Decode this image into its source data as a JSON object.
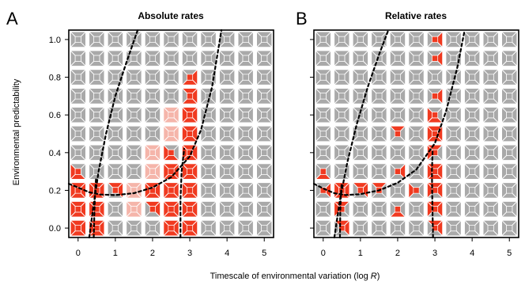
{
  "chart_data": [
    {
      "type": "heatmap",
      "panel": "A",
      "title": "Absolute rates",
      "xlabel": "Timescale of environmental variation (log R)",
      "ylabel": "Environmental predictability",
      "xlim": [
        -0.25,
        5.25
      ],
      "ylim": [
        -0.05,
        1.05
      ],
      "xticks": [
        0,
        1,
        2,
        3,
        4,
        5
      ],
      "yticks": [
        0.0,
        0.2,
        0.4,
        0.6,
        0.8,
        1.0
      ],
      "grid_x_step": 0.5,
      "grid_y_step": 0.1,
      "colors": {
        "cell": "#a9a9a9",
        "highlight": "#f03a20",
        "shade": "#f5b5aa",
        "curve": "#000000",
        "frame": "#000000"
      },
      "highlight_cells": [
        {
          "x": 0.0,
          "y": 0.0,
          "q": [
            "tl",
            "tr",
            "bl",
            "br"
          ]
        },
        {
          "x": 0.5,
          "y": 0.0,
          "q": [
            "tl",
            "tr",
            "bl",
            "br"
          ]
        },
        {
          "x": 0.0,
          "y": 0.1,
          "q": [
            "tl",
            "tr",
            "bl",
            "br"
          ]
        },
        {
          "x": 0.5,
          "y": 0.1,
          "q": [
            "tl",
            "tr",
            "bl",
            "br"
          ]
        },
        {
          "x": 0.0,
          "y": 0.2,
          "q": [
            "tl",
            "tr",
            "bl",
            "br"
          ]
        },
        {
          "x": 0.5,
          "y": 0.2,
          "q": [
            "tl",
            "tr",
            "bl",
            "br"
          ]
        },
        {
          "x": 0.0,
          "y": 0.3,
          "q": [
            "bl",
            "br"
          ]
        },
        {
          "x": 1.0,
          "y": 0.2,
          "q": [
            "tl",
            "tr"
          ]
        },
        {
          "x": 2.5,
          "y": 0.0,
          "q": [
            "tl",
            "tr",
            "bl",
            "br"
          ]
        },
        {
          "x": 3.0,
          "y": 0.0,
          "q": [
            "tl",
            "tr",
            "bl",
            "br"
          ]
        },
        {
          "x": 2.0,
          "y": 0.1,
          "q": [
            "tl",
            "tr"
          ]
        },
        {
          "x": 2.5,
          "y": 0.1,
          "q": [
            "tl",
            "tr",
            "bl",
            "br"
          ]
        },
        {
          "x": 3.0,
          "y": 0.1,
          "q": [
            "tl",
            "tr",
            "bl",
            "br"
          ]
        },
        {
          "x": 2.0,
          "y": 0.2,
          "q": [
            "tl",
            "tr",
            "bl",
            "br"
          ]
        },
        {
          "x": 2.5,
          "y": 0.2,
          "q": [
            "tl",
            "tr",
            "bl",
            "br"
          ]
        },
        {
          "x": 3.0,
          "y": 0.2,
          "q": [
            "tl",
            "tr",
            "bl",
            "br"
          ]
        },
        {
          "x": 2.5,
          "y": 0.3,
          "q": [
            "tl",
            "tr",
            "bl",
            "br"
          ]
        },
        {
          "x": 3.0,
          "y": 0.3,
          "q": [
            "tl",
            "tr",
            "bl",
            "br"
          ]
        },
        {
          "x": 2.5,
          "y": 0.4,
          "q": [
            "bl",
            "br"
          ]
        },
        {
          "x": 3.0,
          "y": 0.4,
          "q": [
            "tl",
            "tr",
            "bl",
            "br"
          ]
        },
        {
          "x": 3.0,
          "y": 0.5,
          "q": [
            "tl",
            "tr",
            "bl",
            "br"
          ]
        },
        {
          "x": 3.0,
          "y": 0.6,
          "q": [
            "tl",
            "tr",
            "bl",
            "br"
          ]
        },
        {
          "x": 3.0,
          "y": 0.7,
          "q": [
            "tl",
            "tr",
            "br"
          ]
        },
        {
          "x": 3.0,
          "y": 0.8,
          "q": [
            "tr",
            "br"
          ]
        }
      ],
      "shaded_cells": [
        {
          "x": 1.5,
          "y": 0.1,
          "q": [
            "tl",
            "tr",
            "bl",
            "br"
          ]
        },
        {
          "x": 1.5,
          "y": 0.2,
          "q": [
            "tl",
            "tr",
            "bl",
            "br"
          ]
        },
        {
          "x": 2.0,
          "y": 0.3,
          "q": [
            "tl",
            "tr",
            "bl",
            "br"
          ]
        },
        {
          "x": 2.0,
          "y": 0.4,
          "q": [
            "tl",
            "tr",
            "bl",
            "br"
          ]
        },
        {
          "x": 2.5,
          "y": 0.5,
          "q": [
            "tl",
            "tr",
            "bl",
            "br"
          ]
        },
        {
          "x": 2.5,
          "y": 0.6,
          "q": [
            "tl",
            "tr",
            "bl",
            "br"
          ]
        }
      ],
      "curves": [
        {
          "name": "",
          "points": [
            [
              -0.25,
              0.235
            ],
            [
              0.0,
              0.215
            ],
            [
              0.3,
              0.19
            ],
            [
              0.6,
              0.178
            ],
            [
              1.0,
              0.175
            ],
            [
              1.5,
              0.185
            ],
            [
              2.0,
              0.215
            ],
            [
              2.5,
              0.27
            ],
            [
              3.0,
              0.38
            ],
            [
              3.3,
              0.52
            ],
            [
              3.6,
              0.75
            ],
            [
              3.85,
              1.05
            ]
          ]
        },
        {
          "name": "",
          "points": [
            [
              0.3,
              -0.05
            ],
            [
              0.4,
              0.1
            ],
            [
              0.55,
              0.3
            ],
            [
              0.75,
              0.5
            ],
            [
              1.0,
              0.7
            ],
            [
              1.3,
              0.88
            ],
            [
              1.6,
              1.05
            ]
          ]
        },
        {
          "name": "",
          "points": [
            [
              0.42,
              -0.05
            ],
            [
              0.44,
              0.1
            ],
            [
              0.46,
              0.2
            ],
            [
              0.48,
              0.26
            ]
          ]
        },
        {
          "name": "",
          "points": [
            [
              2.75,
              -0.05
            ],
            [
              2.75,
              0.15
            ],
            [
              2.78,
              0.3
            ],
            [
              2.85,
              0.42
            ]
          ]
        }
      ]
    },
    {
      "type": "heatmap",
      "panel": "B",
      "title": "Relative rates",
      "xlabel": "",
      "ylabel": "",
      "xlim": [
        -0.25,
        5.25
      ],
      "ylim": [
        -0.05,
        1.05
      ],
      "xticks": [
        0,
        1,
        2,
        3,
        4,
        5
      ],
      "yticks": [
        0.0,
        0.2,
        0.4,
        0.6,
        0.8,
        1.0
      ],
      "grid_x_step": 0.5,
      "grid_y_step": 0.1,
      "colors": {
        "cell": "#a9a9a9",
        "highlight": "#f03a20",
        "shade": "#f5b5aa",
        "curve": "#000000",
        "frame": "#000000"
      },
      "highlight_cells": [
        {
          "x": 0.5,
          "y": 0.0,
          "q": [
            "tl",
            "tr"
          ]
        },
        {
          "x": 0.5,
          "y": 0.1,
          "q": [
            "tl",
            "bl"
          ]
        },
        {
          "x": 0.5,
          "y": 0.2,
          "q": [
            "tl",
            "tr",
            "bl",
            "br"
          ]
        },
        {
          "x": 0.0,
          "y": 0.2,
          "q": [
            "tr"
          ]
        },
        {
          "x": 0.0,
          "y": 0.3,
          "q": [
            "br"
          ]
        },
        {
          "x": 1.0,
          "y": 0.2,
          "q": [
            "tl",
            "tr"
          ]
        },
        {
          "x": 1.5,
          "y": 0.2,
          "q": [
            "tl"
          ]
        },
        {
          "x": 2.0,
          "y": 0.1,
          "q": [
            "br"
          ]
        },
        {
          "x": 2.0,
          "y": 0.3,
          "q": [
            "tr"
          ]
        },
        {
          "x": 2.0,
          "y": 0.5,
          "q": [
            "tl"
          ]
        },
        {
          "x": 2.5,
          "y": 0.2,
          "q": [
            "bl"
          ]
        },
        {
          "x": 3.0,
          "y": 0.0,
          "q": [
            "tl",
            "tr"
          ]
        },
        {
          "x": 3.0,
          "y": 0.1,
          "q": [
            "tl",
            "tr",
            "bl"
          ]
        },
        {
          "x": 3.0,
          "y": 0.2,
          "q": [
            "tl",
            "tr",
            "bl"
          ]
        },
        {
          "x": 3.0,
          "y": 0.3,
          "q": [
            "tl",
            "tr",
            "bl",
            "br"
          ]
        },
        {
          "x": 3.0,
          "y": 0.4,
          "q": [
            "tl",
            "bl"
          ]
        },
        {
          "x": 3.0,
          "y": 0.5,
          "q": [
            "tl",
            "tr",
            "bl",
            "br"
          ]
        },
        {
          "x": 3.0,
          "y": 0.6,
          "q": [
            "bl",
            "br"
          ]
        },
        {
          "x": 3.0,
          "y": 0.7,
          "q": [
            "tr"
          ]
        },
        {
          "x": 3.0,
          "y": 0.9,
          "q": [
            "tr"
          ]
        },
        {
          "x": 3.0,
          "y": 1.0,
          "q": [
            "tr"
          ]
        }
      ],
      "shaded_cells": [],
      "curves": [
        {
          "name": "",
          "points": [
            [
              -0.25,
              0.235
            ],
            [
              0.0,
              0.21
            ],
            [
              0.3,
              0.185
            ],
            [
              0.6,
              0.175
            ],
            [
              1.0,
              0.18
            ],
            [
              1.5,
              0.2
            ],
            [
              2.0,
              0.24
            ],
            [
              2.5,
              0.31
            ],
            [
              3.0,
              0.45
            ],
            [
              3.3,
              0.62
            ],
            [
              3.6,
              0.85
            ],
            [
              3.8,
              1.05
            ]
          ]
        },
        {
          "name": "",
          "points": [
            [
              0.3,
              -0.05
            ],
            [
              0.45,
              0.15
            ],
            [
              0.65,
              0.35
            ],
            [
              0.9,
              0.55
            ],
            [
              1.2,
              0.75
            ],
            [
              1.5,
              0.92
            ],
            [
              1.75,
              1.05
            ]
          ]
        },
        {
          "name": "",
          "points": [
            [
              0.45,
              -0.05
            ],
            [
              0.46,
              0.1
            ],
            [
              0.48,
              0.2
            ],
            [
              0.5,
              0.24
            ]
          ]
        },
        {
          "name": "",
          "points": [
            [
              2.95,
              -0.05
            ],
            [
              2.93,
              0.15
            ],
            [
              2.92,
              0.3
            ],
            [
              2.94,
              0.42
            ]
          ]
        }
      ]
    }
  ],
  "labels": {
    "letter_a": "A",
    "letter_b": "B",
    "title_a": "Absolute rates",
    "title_b": "Relative rates",
    "ylabel": "Environmental predictability",
    "xlabel_main": "Timescale of environmental variation (log ",
    "xlabel_var": "R",
    "xlabel_end": ")"
  }
}
